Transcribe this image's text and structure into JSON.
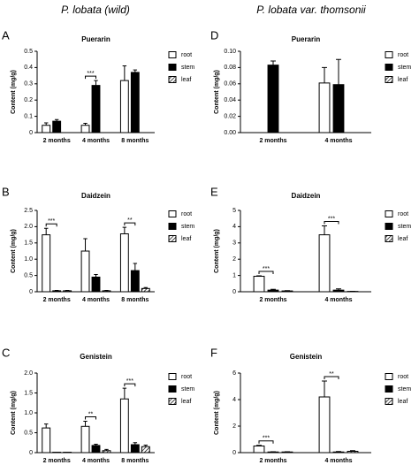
{
  "headers": [
    "P. lobata (wild)",
    "P. lobata var. thomsonii"
  ],
  "chart_data": [
    {
      "type": "bar",
      "panel": "A",
      "title": "Puerarin",
      "y_label": "Content (mg/g)",
      "categories": [
        "2 months",
        "4 months",
        "8 months"
      ],
      "series": [
        {
          "name": "root",
          "color": "#ffffff",
          "values": [
            0.045,
            0.045,
            0.32
          ],
          "errors": [
            0.015,
            0.012,
            0.09
          ]
        },
        {
          "name": "stem",
          "color": "#000000",
          "values": [
            0.07,
            0.29,
            0.37
          ],
          "errors": [
            0.01,
            0.03,
            0.015
          ]
        },
        {
          "name": "leaf",
          "color": "#000000",
          "pattern": "hatch",
          "values": [
            0,
            0,
            0
          ],
          "errors": [
            0,
            0,
            0
          ]
        }
      ],
      "ylim": [
        0,
        0.5
      ],
      "yticks": [
        0,
        0.1,
        0.2,
        0.3,
        0.4,
        0.5
      ],
      "annotations": [
        {
          "label": "***",
          "category": "4 months"
        }
      ]
    },
    {
      "type": "bar",
      "panel": "B",
      "title": "Daidzein",
      "y_label": "Content (mg/g)",
      "categories": [
        "2 months",
        "4 months",
        "8 months"
      ],
      "series": [
        {
          "name": "root",
          "color": "#ffffff",
          "values": [
            1.75,
            1.25,
            1.78
          ],
          "errors": [
            0.2,
            0.38,
            0.2
          ]
        },
        {
          "name": "stem",
          "color": "#000000",
          "values": [
            0.03,
            0.45,
            0.65
          ],
          "errors": [
            0.01,
            0.08,
            0.22
          ]
        },
        {
          "name": "leaf",
          "color": "#000000",
          "pattern": "hatch",
          "values": [
            0.03,
            0.03,
            0.1
          ],
          "errors": [
            0.01,
            0.01,
            0.03
          ]
        }
      ],
      "ylim": [
        0,
        2.5
      ],
      "yticks": [
        0,
        0.5,
        {
          "value": 1,
          "label": "1.0"
        },
        1.5,
        {
          "value": 2,
          "label": "2.0"
        },
        2.5
      ],
      "annotations": [
        {
          "label": "***",
          "category": "2 months"
        },
        {
          "label": "**",
          "category": "8 months"
        }
      ]
    },
    {
      "type": "bar",
      "panel": "C",
      "title": "Genistein",
      "y_label": "Content (mg/g)",
      "categories": [
        "2 months",
        "4 months",
        "8 months"
      ],
      "series": [
        {
          "name": "root",
          "color": "#ffffff",
          "values": [
            0.62,
            0.66,
            1.35
          ],
          "errors": [
            0.1,
            0.13,
            0.27
          ]
        },
        {
          "name": "stem",
          "color": "#000000",
          "values": [
            0.01,
            0.18,
            0.2
          ],
          "errors": [
            0,
            0.03,
            0.05
          ]
        },
        {
          "name": "leaf",
          "color": "#000000",
          "pattern": "hatch",
          "values": [
            0.01,
            0.05,
            0.15
          ],
          "errors": [
            0,
            0.03,
            0.04
          ]
        }
      ],
      "ylim": [
        0,
        2
      ],
      "yticks": [
        0,
        0.5,
        {
          "value": 1,
          "label": "1.0"
        },
        1.5,
        {
          "value": 2,
          "label": "2.0"
        }
      ],
      "annotations": [
        {
          "label": "**",
          "category": "4 months"
        },
        {
          "label": "***",
          "category": "8 months"
        }
      ]
    },
    {
      "type": "bar",
      "panel": "D",
      "title": "Puerarin",
      "y_label": "Content (mg/g)",
      "categories": [
        "2 months",
        "4 months"
      ],
      "series": [
        {
          "name": "root",
          "color": "#ffffff",
          "values": [
            0,
            0.061
          ],
          "errors": [
            0,
            0.019
          ]
        },
        {
          "name": "stem",
          "color": "#000000",
          "values": [
            0.083,
            0.059
          ],
          "errors": [
            0.005,
            0.031
          ]
        },
        {
          "name": "leaf",
          "color": "#000000",
          "pattern": "hatch",
          "values": [
            0,
            0
          ],
          "errors": [
            0,
            0
          ]
        }
      ],
      "ylim": [
        0,
        0.1
      ],
      "yticks": [
        {
          "value": 0,
          "label": "0.00"
        },
        {
          "value": 0.02,
          "label": "0.02"
        },
        {
          "value": 0.04,
          "label": "0.04"
        },
        {
          "value": 0.06,
          "label": "0.06"
        },
        {
          "value": 0.08,
          "label": "0.08"
        },
        {
          "value": 0.1,
          "label": "0.10"
        }
      ],
      "annotations": []
    },
    {
      "type": "bar",
      "panel": "E",
      "title": "Daidzein",
      "y_label": "Content (mg/g)",
      "categories": [
        "2 months",
        "4 months"
      ],
      "series": [
        {
          "name": "root",
          "color": "#ffffff",
          "values": [
            0.95,
            3.5
          ],
          "errors": [
            0.03,
            0.55
          ]
        },
        {
          "name": "stem",
          "color": "#000000",
          "values": [
            0.1,
            0.1
          ],
          "errors": [
            0.05,
            0.08
          ]
        },
        {
          "name": "leaf",
          "color": "#000000",
          "pattern": "hatch",
          "values": [
            0.05,
            0.02
          ],
          "errors": [
            0.02,
            0.01
          ]
        }
      ],
      "ylim": [
        0,
        5
      ],
      "yticks": [
        0,
        1,
        2,
        3,
        4,
        5
      ],
      "annotations": [
        {
          "label": "***",
          "category": "2 months"
        },
        {
          "label": "***",
          "category": "4 months"
        }
      ]
    },
    {
      "type": "bar",
      "panel": "F",
      "title": "Genistein",
      "y_label": "Content (mg/g)",
      "categories": [
        "2 months",
        "4 months"
      ],
      "series": [
        {
          "name": "root",
          "color": "#ffffff",
          "values": [
            0.5,
            4.2
          ],
          "errors": [
            0.05,
            1.2
          ]
        },
        {
          "name": "stem",
          "color": "#000000",
          "values": [
            0.05,
            0.05
          ],
          "errors": [
            0.02,
            0.03
          ]
        },
        {
          "name": "leaf",
          "color": "#000000",
          "pattern": "hatch",
          "values": [
            0.05,
            0.1
          ],
          "errors": [
            0.02,
            0.05
          ]
        }
      ],
      "ylim": [
        0,
        6
      ],
      "yticks": [
        0,
        2,
        4,
        6
      ],
      "annotations": [
        {
          "label": "***",
          "category": "2 months"
        },
        {
          "label": "**",
          "category": "4 months"
        }
      ]
    }
  ]
}
